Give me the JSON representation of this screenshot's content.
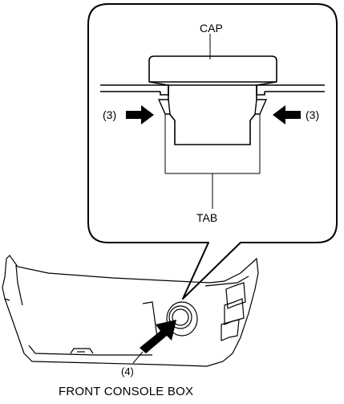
{
  "labels": {
    "cap": "CAP",
    "tab": "TAB",
    "arrow_left": "(3)",
    "arrow_right": "(3)",
    "push_arrow": "(4)"
  },
  "caption": "FRONT CONSOLE BOX"
}
